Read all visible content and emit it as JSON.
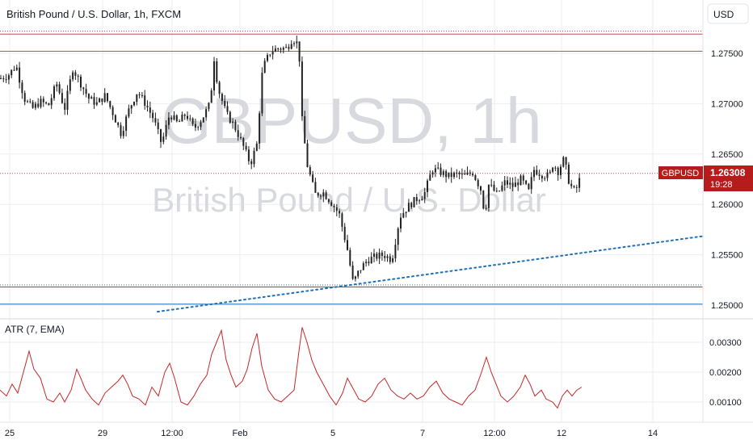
{
  "header": {
    "title": "British Pound / U.S. Dollar, 1h, FXCM",
    "currency_button": "USD"
  },
  "watermark": {
    "symbol_line": "GBPUSD, 1h",
    "name_line": "British Pound / U.S. Dollar"
  },
  "price_badge": {
    "symbol": "GBPUSD",
    "price": "1.26308",
    "countdown": "19:28",
    "color": "#b71c1c"
  },
  "indicator": {
    "title": "ATR (7, EMA)"
  },
  "colors": {
    "candle": "#222222",
    "resistance_line": "#c0504d",
    "support_line": "#1e6fb8",
    "trendline": "#1e6fb8",
    "atr_line": "#c62828",
    "grid": "#eceef2",
    "axis_text": "#131722"
  },
  "chart_data": [
    {
      "type": "candlestick",
      "title": "British Pound / U.S. Dollar, 1h, FXCM",
      "y_axis_ticks": [
        "1.27500",
        "1.27000",
        "1.26500",
        "1.26000",
        "1.25500",
        "1.25000"
      ],
      "ylim": [
        1.2497,
        1.2779
      ],
      "x_axis_ticks": [
        "25",
        "29",
        "12:00",
        "Feb",
        "5",
        "7",
        "12:00",
        "12",
        "14"
      ],
      "last_price": 1.26308,
      "close_path": [
        [
          0,
          1.2725
        ],
        [
          10,
          1.2728
        ],
        [
          20,
          1.2738
        ],
        [
          30,
          1.2705
        ],
        [
          40,
          1.2695
        ],
        [
          50,
          1.2702
        ],
        [
          60,
          1.2698
        ],
        [
          70,
          1.272
        ],
        [
          80,
          1.2695
        ],
        [
          90,
          1.2735
        ],
        [
          100,
          1.272
        ],
        [
          110,
          1.2705
        ],
        [
          120,
          1.27
        ],
        [
          130,
          1.2708
        ],
        [
          140,
          1.269
        ],
        [
          150,
          1.267
        ],
        [
          160,
          1.2695
        ],
        [
          170,
          1.2712
        ],
        [
          180,
          1.27
        ],
        [
          190,
          1.2685
        ],
        [
          200,
          1.266
        ],
        [
          210,
          1.269
        ],
        [
          220,
          1.268
        ],
        [
          230,
          1.269
        ],
        [
          240,
          1.2675
        ],
        [
          250,
          1.2685
        ],
        [
          260,
          1.27
        ],
        [
          265,
          1.2745
        ],
        [
          270,
          1.2715
        ],
        [
          280,
          1.269
        ],
        [
          290,
          1.2678
        ],
        [
          300,
          1.266
        ],
        [
          310,
          1.264
        ],
        [
          318,
          1.266
        ],
        [
          325,
          1.2735
        ],
        [
          335,
          1.2752
        ],
        [
          345,
          1.2755
        ],
        [
          355,
          1.2755
        ],
        [
          362,
          1.2765
        ],
        [
          370,
          1.2758
        ],
        [
          373,
          1.269
        ],
        [
          380,
          1.264
        ],
        [
          390,
          1.261
        ],
        [
          400,
          1.2612
        ],
        [
          410,
          1.2602
        ],
        [
          420,
          1.259
        ],
        [
          430,
          1.2555
        ],
        [
          437,
          1.2522
        ],
        [
          445,
          1.2535
        ],
        [
          455,
          1.2545
        ],
        [
          465,
          1.2548
        ],
        [
          475,
          1.255
        ],
        [
          485,
          1.2545
        ],
        [
          495,
          1.2588
        ],
        [
          505,
          1.2598
        ],
        [
          515,
          1.2605
        ],
        [
          525,
          1.261
        ],
        [
          535,
          1.2635
        ],
        [
          545,
          1.2632
        ],
        [
          555,
          1.2628
        ],
        [
          565,
          1.263
        ],
        [
          575,
          1.2628
        ],
        [
          585,
          1.2632
        ],
        [
          595,
          1.2615
        ],
        [
          600,
          1.259
        ],
        [
          605,
          1.262
        ],
        [
          615,
          1.261
        ],
        [
          625,
          1.2622
        ],
        [
          635,
          1.2618
        ],
        [
          645,
          1.2625
        ],
        [
          655,
          1.2612
        ],
        [
          660,
          1.2635
        ],
        [
          670,
          1.263
        ],
        [
          680,
          1.2628
        ],
        [
          685,
          1.2642
        ],
        [
          690,
          1.2632
        ],
        [
          698,
          1.2645
        ],
        [
          705,
          1.262
        ],
        [
          712,
          1.2612
        ],
        [
          720,
          1.2631
        ]
      ],
      "horizontal_levels": [
        {
          "price": 1.2772,
          "style": "dotted",
          "color": "#c0504d"
        },
        {
          "price": 1.2769,
          "style": "solid",
          "color": "#c0504d"
        },
        {
          "price": 1.2752,
          "style": "solid",
          "color": "#c0504d"
        },
        {
          "price": 1.26308,
          "style": "dotted",
          "color": "#c0504d"
        },
        {
          "price": 1.252,
          "style": "dotted",
          "color": "#1e6fb8"
        },
        {
          "price": 1.2518,
          "style": "solid",
          "color": "#1e6fb8"
        },
        {
          "price": 1.2501,
          "style": "solid",
          "color": "#1e6fb8"
        }
      ],
      "trendline": {
        "from": [
          195,
          1.24935
        ],
        "to": [
          870,
          1.25685
        ],
        "style": "dotted"
      }
    },
    {
      "type": "line",
      "title": "ATR (7, EMA)",
      "y_axis_ticks": [
        "0.00300",
        "0.00200",
        "0.00100"
      ],
      "ylim": [
        0.0005,
        0.0037
      ],
      "series": [
        {
          "values": [
            [
              0,
              0.0014
            ],
            [
              8,
              0.0012
            ],
            [
              15,
              0.0016
            ],
            [
              22,
              0.0013
            ],
            [
              30,
              0.0021
            ],
            [
              36,
              0.0027
            ],
            [
              42,
              0.0021
            ],
            [
              50,
              0.0018
            ],
            [
              58,
              0.0011
            ],
            [
              66,
              0.001
            ],
            [
              74,
              0.0013
            ],
            [
              80,
              0.001
            ],
            [
              88,
              0.0014
            ],
            [
              95,
              0.0021
            ],
            [
              100,
              0.0018
            ],
            [
              106,
              0.0014
            ],
            [
              114,
              0.0011
            ],
            [
              122,
              0.0009
            ],
            [
              130,
              0.0013
            ],
            [
              138,
              0.0015
            ],
            [
              146,
              0.0017
            ],
            [
              152,
              0.0019
            ],
            [
              158,
              0.0016
            ],
            [
              164,
              0.0012
            ],
            [
              172,
              0.0011
            ],
            [
              180,
              0.0009
            ],
            [
              188,
              0.0015
            ],
            [
              196,
              0.0012
            ],
            [
              204,
              0.002
            ],
            [
              210,
              0.0023
            ],
            [
              216,
              0.0018
            ],
            [
              224,
              0.001
            ],
            [
              232,
              0.0009
            ],
            [
              240,
              0.0012
            ],
            [
              248,
              0.0016
            ],
            [
              256,
              0.0019
            ],
            [
              262,
              0.0026
            ],
            [
              268,
              0.003
            ],
            [
              274,
              0.0034
            ],
            [
              280,
              0.0024
            ],
            [
              286,
              0.0019
            ],
            [
              292,
              0.0015
            ],
            [
              300,
              0.0017
            ],
            [
              306,
              0.0021
            ],
            [
              312,
              0.0028
            ],
            [
              318,
              0.0033
            ],
            [
              324,
              0.0022
            ],
            [
              332,
              0.0014
            ],
            [
              340,
              0.0011
            ],
            [
              348,
              0.001
            ],
            [
              356,
              0.0012
            ],
            [
              364,
              0.0014
            ],
            [
              370,
              0.0027
            ],
            [
              374,
              0.0035
            ],
            [
              380,
              0.003
            ],
            [
              386,
              0.0024
            ],
            [
              392,
              0.002
            ],
            [
              400,
              0.0016
            ],
            [
              408,
              0.0012
            ],
            [
              416,
              0.0009
            ],
            [
              424,
              0.0013
            ],
            [
              430,
              0.0018
            ],
            [
              436,
              0.0015
            ],
            [
              444,
              0.0011
            ],
            [
              452,
              0.001
            ],
            [
              460,
              0.0012
            ],
            [
              468,
              0.0016
            ],
            [
              476,
              0.0018
            ],
            [
              484,
              0.0014
            ],
            [
              492,
              0.0012
            ],
            [
              500,
              0.0011
            ],
            [
              508,
              0.0013
            ],
            [
              516,
              0.0011
            ],
            [
              524,
              0.0012
            ],
            [
              532,
              0.0015
            ],
            [
              540,
              0.0017
            ],
            [
              548,
              0.0013
            ],
            [
              556,
              0.0011
            ],
            [
              564,
              0.001
            ],
            [
              572,
              0.0009
            ],
            [
              580,
              0.0012
            ],
            [
              588,
              0.0014
            ],
            [
              596,
              0.002
            ],
            [
              602,
              0.0025
            ],
            [
              608,
              0.002
            ],
            [
              614,
              0.0016
            ],
            [
              620,
              0.0012
            ],
            [
              628,
              0.001
            ],
            [
              636,
              0.0012
            ],
            [
              644,
              0.0015
            ],
            [
              650,
              0.0019
            ],
            [
              656,
              0.0016
            ],
            [
              662,
              0.0012
            ],
            [
              670,
              0.0014
            ],
            [
              676,
              0.0011
            ],
            [
              684,
              0.001
            ],
            [
              690,
              0.0008
            ],
            [
              696,
              0.0012
            ],
            [
              702,
              0.0014
            ],
            [
              708,
              0.0012
            ],
            [
              714,
              0.0014
            ],
            [
              720,
              0.0015
            ]
          ]
        }
      ]
    }
  ]
}
